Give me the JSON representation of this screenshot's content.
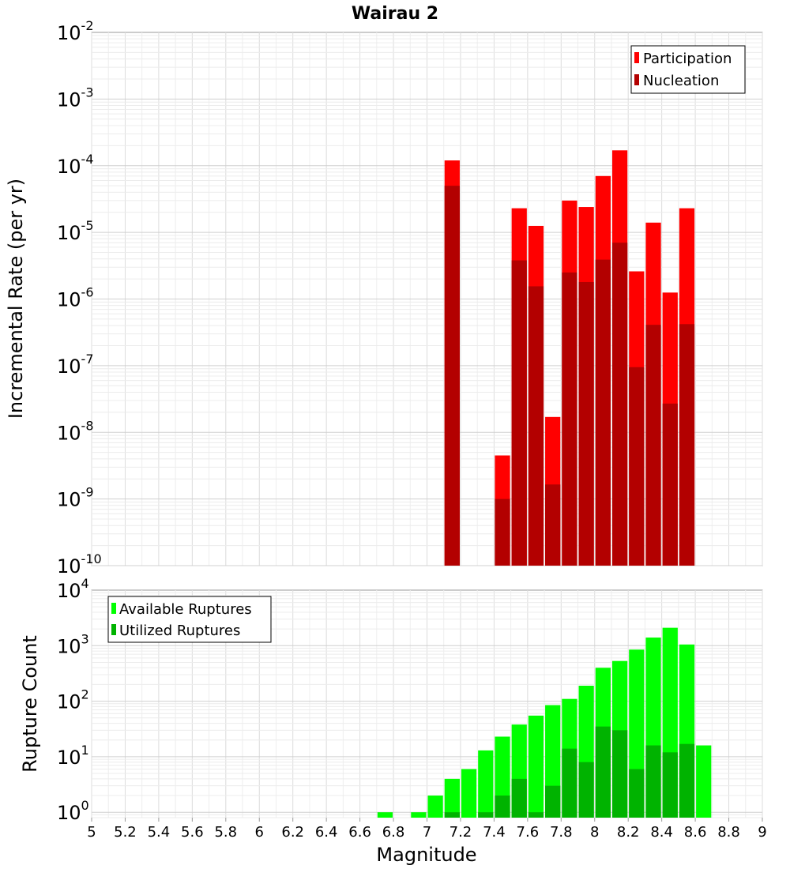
{
  "title": "Wairau 2",
  "chart_data": [
    {
      "type": "bar",
      "ylabel": "Incremental Rate (per yr)",
      "yscale": "log",
      "ylim": [
        1e-10,
        0.01
      ],
      "y_tick_labels": [
        {
          "base": "10",
          "exp": "-2"
        },
        {
          "base": "10",
          "exp": "-3"
        },
        {
          "base": "10",
          "exp": "-4"
        },
        {
          "base": "10",
          "exp": "-5"
        },
        {
          "base": "10",
          "exp": "-6"
        },
        {
          "base": "10",
          "exp": "-7"
        },
        {
          "base": "10",
          "exp": "-8"
        },
        {
          "base": "10",
          "exp": "-9"
        },
        {
          "base": "10",
          "exp": "-10"
        }
      ],
      "xlim": [
        5,
        9
      ],
      "grid": true,
      "legend_position": "top-right",
      "series": [
        {
          "name": "Participation",
          "color": "#ff0000",
          "points": [
            {
              "x": 7.15,
              "y": 0.00012
            },
            {
              "x": 7.45,
              "y": 4.5e-09
            },
            {
              "x": 7.55,
              "y": 2.3e-05
            },
            {
              "x": 7.65,
              "y": 1.25e-05
            },
            {
              "x": 7.75,
              "y": 1.7e-08
            },
            {
              "x": 7.85,
              "y": 3e-05
            },
            {
              "x": 7.95,
              "y": 2.4e-05
            },
            {
              "x": 8.05,
              "y": 7e-05
            },
            {
              "x": 8.15,
              "y": 0.00017
            },
            {
              "x": 8.25,
              "y": 2.6e-06
            },
            {
              "x": 8.35,
              "y": 1.4e-05
            },
            {
              "x": 8.45,
              "y": 1.25e-06
            },
            {
              "x": 8.55,
              "y": 2.3e-05
            }
          ]
        },
        {
          "name": "Nucleation",
          "color": "#b30000",
          "points": [
            {
              "x": 7.15,
              "y": 5e-05
            },
            {
              "x": 7.45,
              "y": 1e-09
            },
            {
              "x": 7.55,
              "y": 3.8e-06
            },
            {
              "x": 7.65,
              "y": 1.55e-06
            },
            {
              "x": 7.75,
              "y": 1.65e-09
            },
            {
              "x": 7.85,
              "y": 2.5e-06
            },
            {
              "x": 7.95,
              "y": 1.8e-06
            },
            {
              "x": 8.05,
              "y": 3.9e-06
            },
            {
              "x": 8.15,
              "y": 7e-06
            },
            {
              "x": 8.25,
              "y": 9.5e-08
            },
            {
              "x": 8.35,
              "y": 4.1e-07
            },
            {
              "x": 8.45,
              "y": 2.7e-08
            },
            {
              "x": 8.55,
              "y": 4.2e-07
            }
          ]
        }
      ]
    },
    {
      "type": "bar",
      "ylabel": "Rupture Count",
      "xlabel": "Magnitude",
      "yscale": "log",
      "ylim": [
        0.8,
        10000
      ],
      "y_tick_labels": [
        {
          "base": "10",
          "exp": "4",
          "value": 10000
        },
        {
          "base": "10",
          "exp": "3",
          "value": 1000
        },
        {
          "base": "10",
          "exp": "2",
          "value": 100
        },
        {
          "base": "10",
          "exp": "1",
          "value": 10
        },
        {
          "base": "10",
          "exp": "0",
          "value": 1
        }
      ],
      "xlim": [
        5,
        9
      ],
      "x_ticks": [
        "5",
        "5.2",
        "5.4",
        "5.6",
        "5.8",
        "6",
        "6.2",
        "6.4",
        "6.6",
        "6.8",
        "7",
        "7.2",
        "7.4",
        "7.6",
        "7.8",
        "8",
        "8.2",
        "8.4",
        "8.6",
        "8.8",
        "9"
      ],
      "grid": true,
      "legend_position": "top-left",
      "series": [
        {
          "name": "Available Ruptures",
          "color": "#00ff00",
          "points": [
            {
              "x": 6.75,
              "y": 1
            },
            {
              "x": 6.95,
              "y": 1
            },
            {
              "x": 7.05,
              "y": 2
            },
            {
              "x": 7.15,
              "y": 4
            },
            {
              "x": 7.25,
              "y": 6
            },
            {
              "x": 7.35,
              "y": 13
            },
            {
              "x": 7.45,
              "y": 23
            },
            {
              "x": 7.55,
              "y": 38
            },
            {
              "x": 7.65,
              "y": 55
            },
            {
              "x": 7.75,
              "y": 85
            },
            {
              "x": 7.85,
              "y": 110
            },
            {
              "x": 7.95,
              "y": 190
            },
            {
              "x": 8.05,
              "y": 400
            },
            {
              "x": 8.15,
              "y": 530
            },
            {
              "x": 8.25,
              "y": 850
            },
            {
              "x": 8.35,
              "y": 1400
            },
            {
              "x": 8.45,
              "y": 2100
            },
            {
              "x": 8.55,
              "y": 1050
            },
            {
              "x": 8.65,
              "y": 16
            }
          ]
        },
        {
          "name": "Utilized Ruptures",
          "color": "#00b300",
          "points": [
            {
              "x": 7.15,
              "y": 1
            },
            {
              "x": 7.35,
              "y": 1
            },
            {
              "x": 7.45,
              "y": 2
            },
            {
              "x": 7.55,
              "y": 4
            },
            {
              "x": 7.65,
              "y": 1
            },
            {
              "x": 7.75,
              "y": 3
            },
            {
              "x": 7.85,
              "y": 14
            },
            {
              "x": 7.95,
              "y": 8
            },
            {
              "x": 8.05,
              "y": 35
            },
            {
              "x": 8.15,
              "y": 30
            },
            {
              "x": 8.25,
              "y": 6
            },
            {
              "x": 8.35,
              "y": 16
            },
            {
              "x": 8.45,
              "y": 12
            },
            {
              "x": 8.55,
              "y": 17
            }
          ]
        }
      ]
    }
  ]
}
